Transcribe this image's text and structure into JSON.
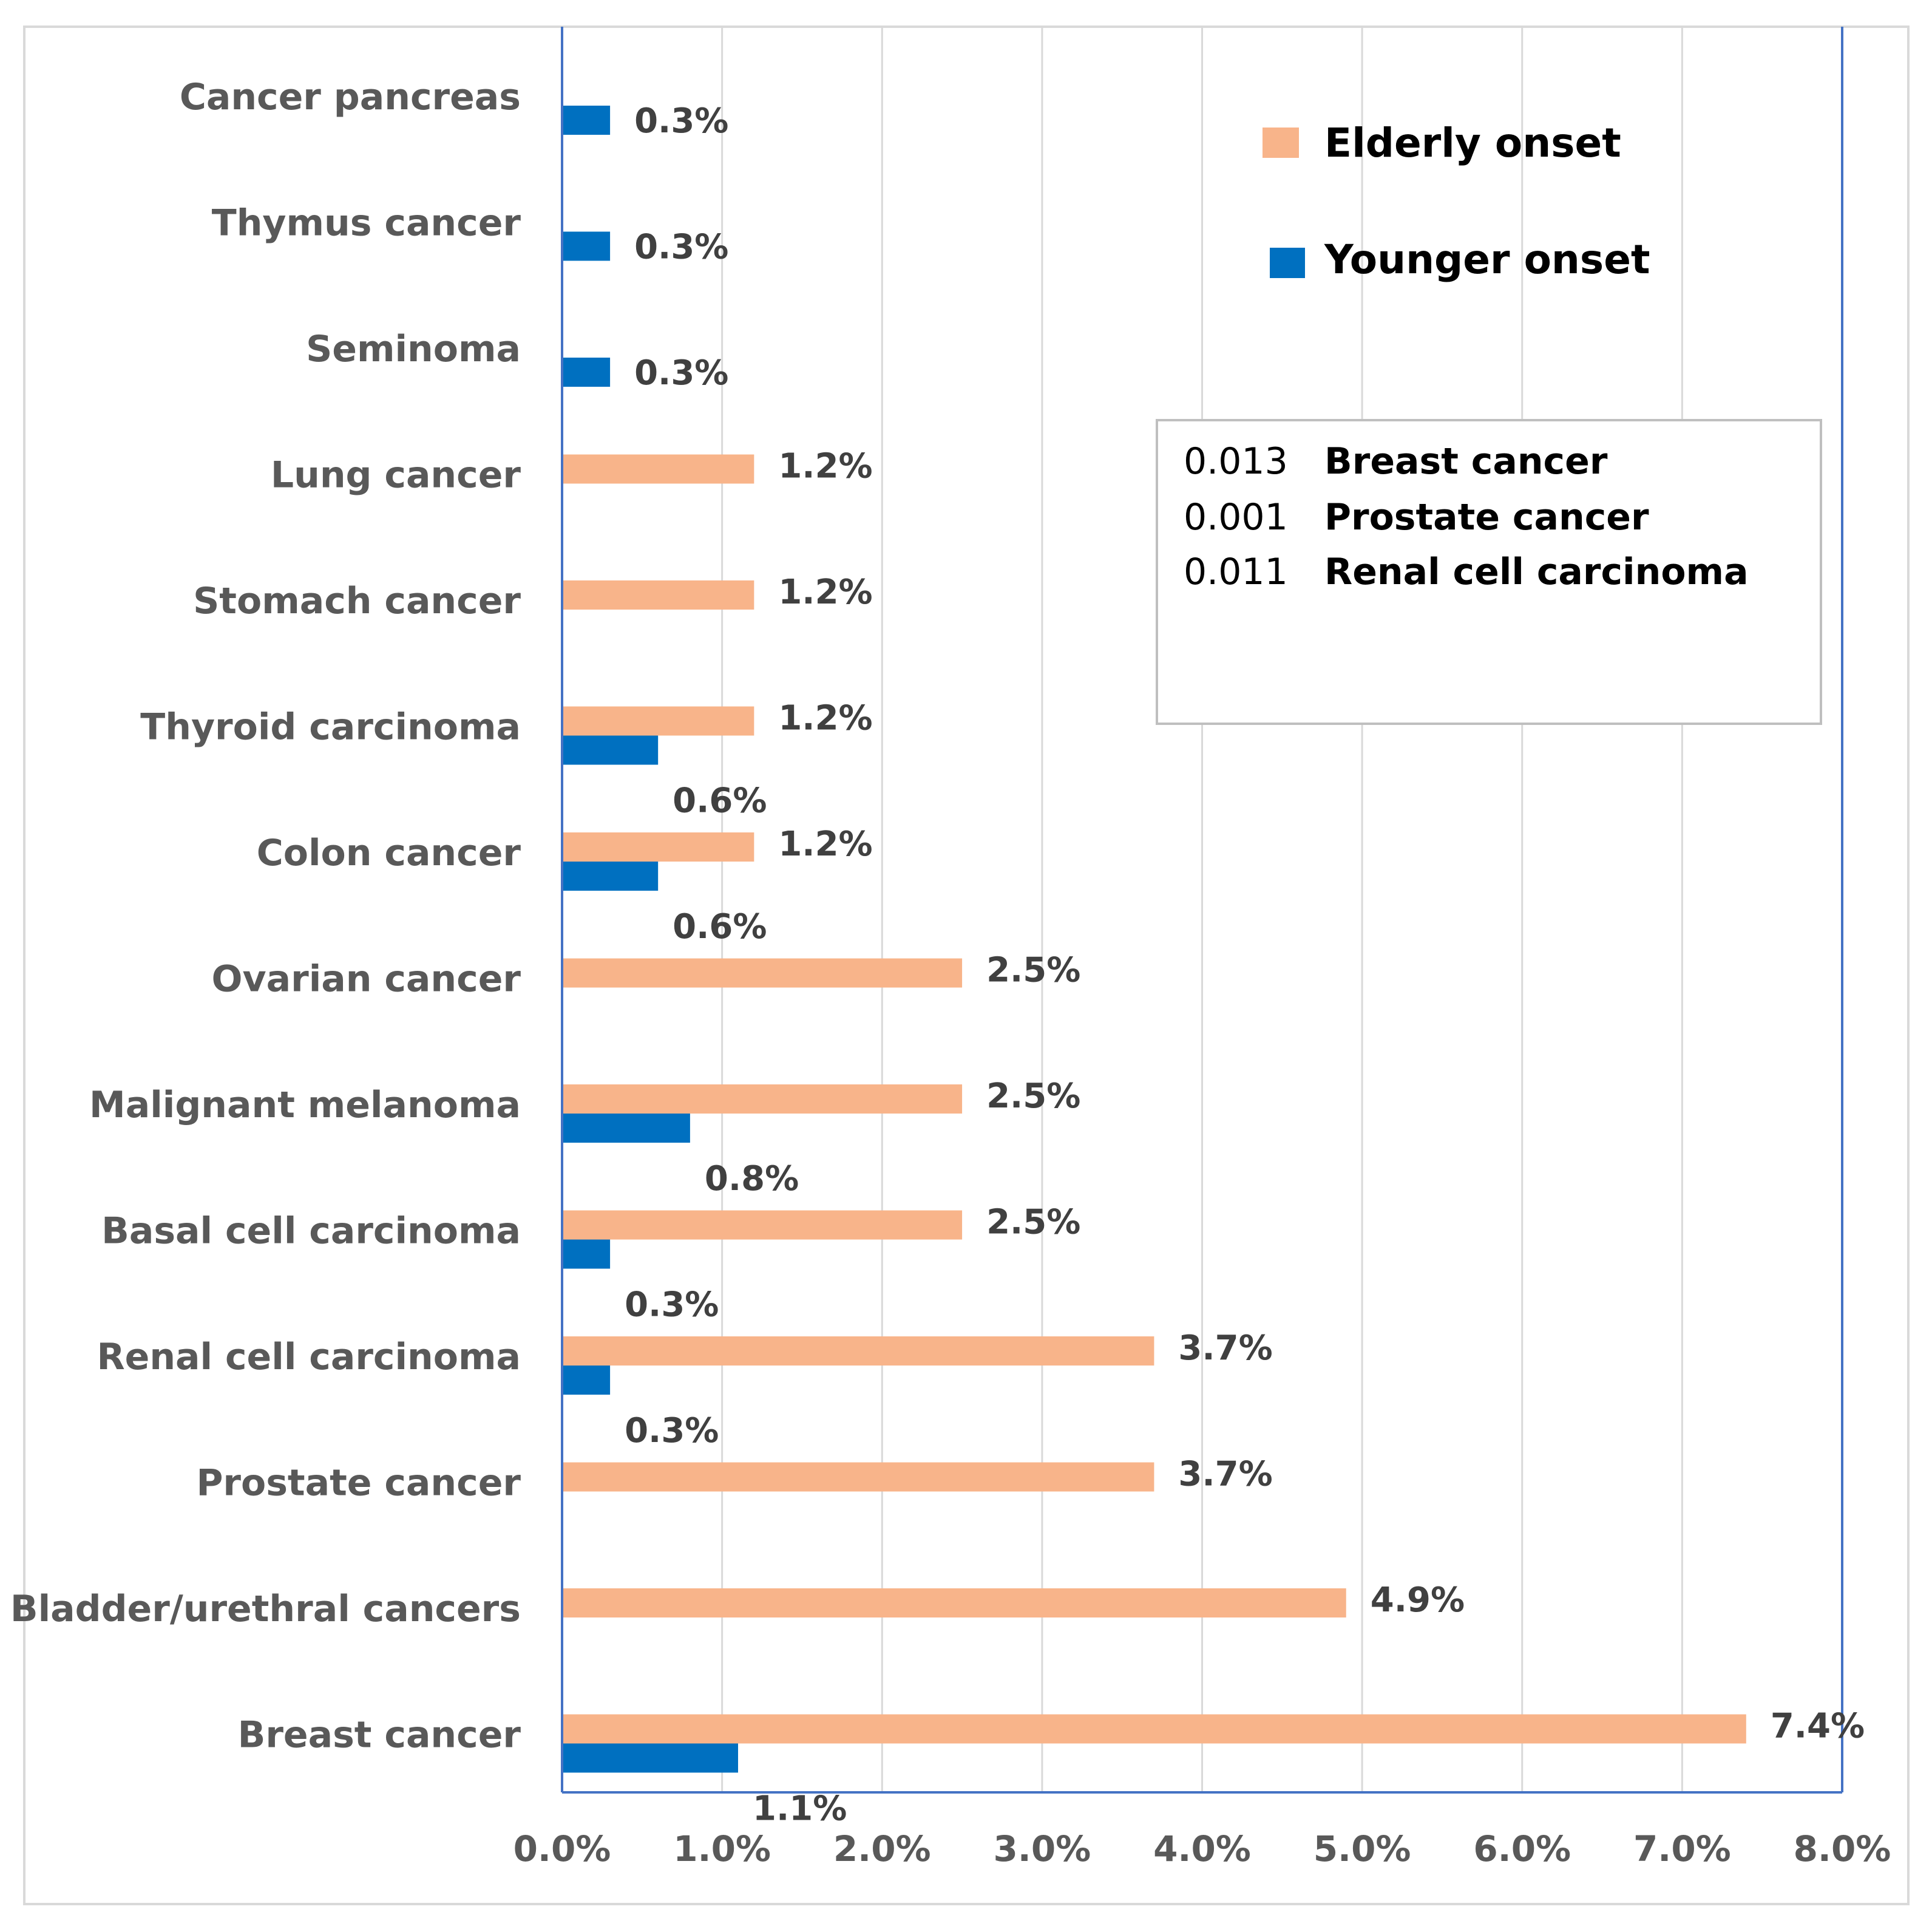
{
  "chart_data": {
    "type": "bar",
    "orientation": "horizontal",
    "title": "",
    "xlabel": "",
    "ylabel": "",
    "xlim": [
      0,
      0.08
    ],
    "x_ticks": [
      0,
      0.01,
      0.02,
      0.03,
      0.04,
      0.05,
      0.06,
      0.07,
      0.08
    ],
    "x_tick_labels": [
      "0.0%",
      "1.0%",
      "2.0%",
      "3.0%",
      "4.0%",
      "5.0%",
      "6.0%",
      "7.0%",
      "8.0%"
    ],
    "grid": "vertical",
    "legend_position": "top-right",
    "categories": [
      "Cancer pancreas",
      "Thymus  cancer",
      "Seminoma",
      "Lung cancer",
      "Stomach cancer",
      "Thyroid carcinoma",
      "Colon  cancer",
      "Ovarian cancer",
      "Malignant melanoma",
      "Basal cell carcinoma",
      "Renal cell carcinoma",
      "Prostate cancer",
      "Bladder/urethral cancers",
      "Breast cancer"
    ],
    "series": [
      {
        "name": "Elderly  onset",
        "color": "#F8B48A",
        "values": [
          null,
          null,
          null,
          0.012,
          0.012,
          0.012,
          0.012,
          0.025,
          0.025,
          0.025,
          0.037,
          0.037,
          0.049,
          0.074
        ],
        "labels": [
          "",
          "",
          "",
          "1.2%",
          "1.2%",
          "1.2%",
          "1.2%",
          "2.5%",
          "2.5%",
          "2.5%",
          "3.7%",
          "3.7%",
          "4.9%",
          "7.4%"
        ]
      },
      {
        "name": "Younger onset",
        "color": "#0070C0",
        "values": [
          0.003,
          0.003,
          0.003,
          null,
          null,
          0.006,
          0.006,
          null,
          0.008,
          0.003,
          0.003,
          null,
          null,
          0.011
        ],
        "labels": [
          "0.3%",
          "0.3%",
          "0.3%",
          "",
          "",
          "0.6%",
          "0.6%",
          "",
          "0.8%",
          "0.3%",
          "0.3%",
          "",
          "",
          "1.1%"
        ]
      }
    ],
    "annotation": {
      "rows": [
        {
          "value": "0.013",
          "label": "Breast cancer"
        },
        {
          "value": "0.001",
          "label": "Prostate cancer"
        },
        {
          "value": "0.011",
          "label": "Renal cell carcinoma"
        }
      ]
    }
  }
}
